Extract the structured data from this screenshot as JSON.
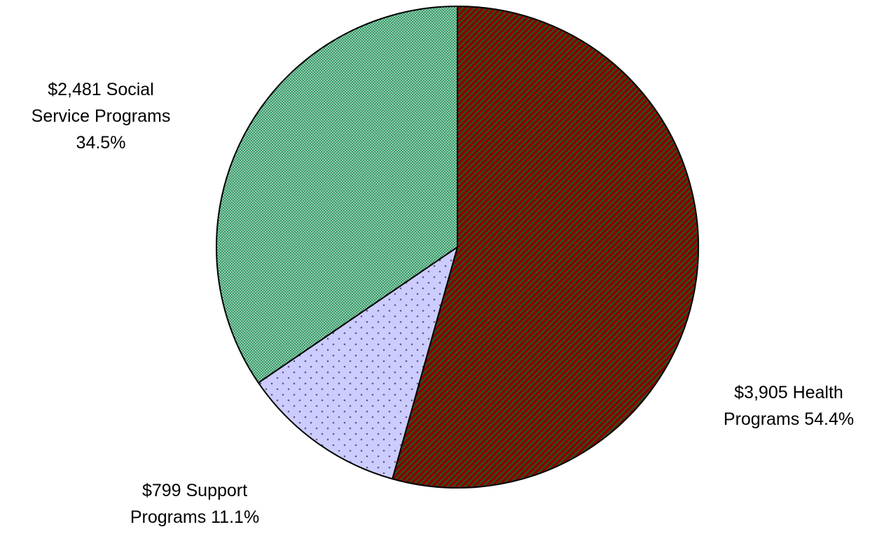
{
  "chart_data": {
    "type": "pie",
    "title": "",
    "slices": [
      {
        "key": "health",
        "amount": "$3,905",
        "name": "Health Programs",
        "value": 3905,
        "percent": 54.4,
        "label_lines": [
          "$3,905 Health",
          "Programs 54.4%"
        ],
        "color": "#7a1a0a",
        "pattern": "diagonal-stripes",
        "pattern_colors": [
          "#8b0000",
          "#1f5a1f"
        ]
      },
      {
        "key": "support",
        "amount": "$799",
        "name": "Support Programs",
        "value": 799,
        "percent": 11.1,
        "label_lines": [
          "$799  Support",
          "Programs 11.1%"
        ],
        "color": "#ccccff",
        "pattern": "dots",
        "pattern_colors": [
          "#ccccff",
          "#6b6b8a"
        ]
      },
      {
        "key": "social",
        "amount": "$2,481",
        "name": "Social Service Programs",
        "value": 2481,
        "percent": 34.5,
        "label_lines": [
          "$2,481   Social",
          "Service Programs",
          "34.5%"
        ],
        "color": "#3a9a6a",
        "pattern": "fine-dots",
        "pattern_colors": [
          "#3a9a6a",
          "#c8ecd8"
        ]
      }
    ]
  }
}
